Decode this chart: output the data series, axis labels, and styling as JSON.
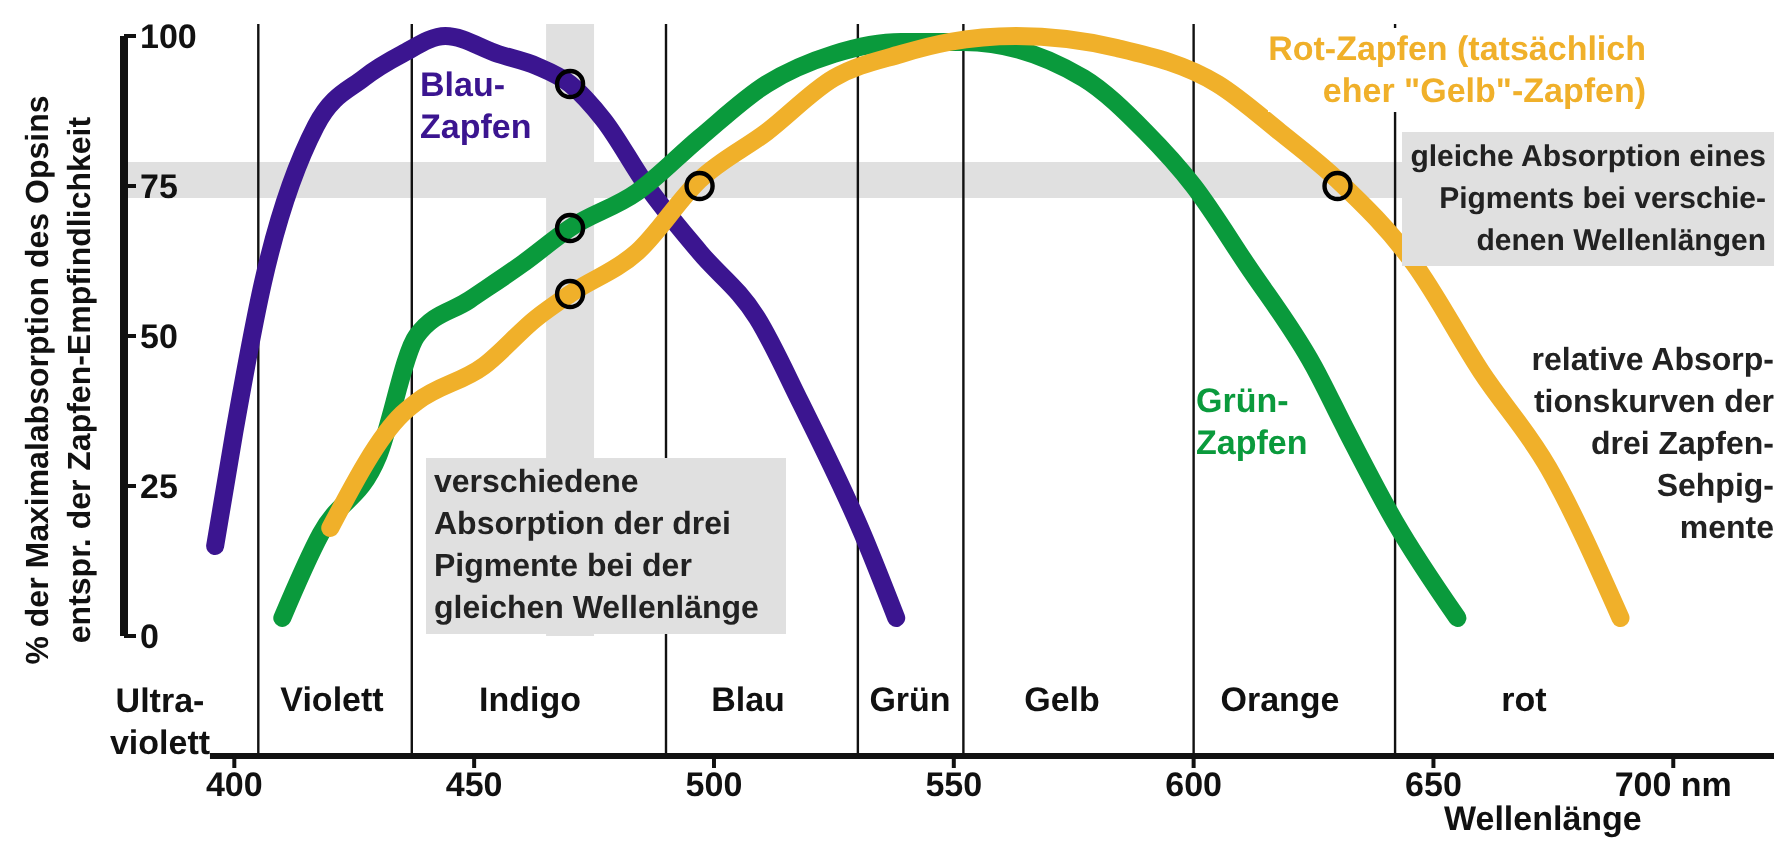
{
  "chart_data": {
    "type": "line",
    "ylabel": "% der Maximalabsorption des Opsins\nentspr. der Zapfen-Empfindlichkeit",
    "xlabel": "Wellenlänge",
    "xlim": [
      377,
      721
    ],
    "xticks": [
      400,
      450,
      500,
      550,
      600,
      650,
      {
        "value": 700,
        "label": "700 nm"
      }
    ],
    "ylim": [
      -20,
      102
    ],
    "yticks": [
      0,
      25,
      50,
      75,
      100
    ],
    "line_style": "solid",
    "marker": "none",
    "series": [
      {
        "name": "Blau-\nZapfen",
        "color": "#3b1590",
        "x": [
          396,
          400,
          406,
          417,
          427,
          435,
          444,
          455,
          463,
          470,
          477,
          486,
          497,
          509,
          518,
          531,
          538
        ],
        "values": [
          15,
          34,
          59,
          85,
          93,
          97,
          100,
          97,
          95,
          92,
          86,
          75,
          64,
          53,
          39,
          17,
          3
        ]
      },
      {
        "name": "Grün-\nZapfen",
        "color": "#0a9a3c",
        "x": [
          410,
          418,
          430,
          438,
          449,
          460,
          470,
          484,
          497,
          511,
          525,
          539,
          552,
          577,
          590,
          600,
          611,
          625,
          632,
          642,
          655
        ],
        "values": [
          3,
          17,
          30,
          50,
          56,
          62,
          68,
          74,
          83,
          92,
          97,
          99,
          99,
          93,
          84,
          75,
          62,
          45,
          34,
          19,
          3
        ]
      },
      {
        "name": "Rot-Zapfen (tatsächlich\neher \"Gelb\"-Zapfen)",
        "color": "#f0b02a",
        "x": [
          420,
          435,
          438,
          452,
          463,
          470,
          484,
          497,
          511,
          525,
          539,
          549,
          563,
          584,
          605,
          618,
          630,
          646,
          660,
          674,
          689
        ],
        "values": [
          18,
          37,
          39,
          45,
          53,
          57,
          64,
          76,
          84,
          93,
          97,
          99,
          100,
          98,
          92,
          84,
          76,
          62,
          44,
          28,
          3
        ]
      },
      {
        "type": "scatter",
        "marker": "circle",
        "color": "#000000",
        "x": [
          470,
          470,
          470,
          497,
          630
        ],
        "values": [
          92,
          68,
          57,
          75,
          75
        ]
      }
    ],
    "ref_lines": [
      {
        "axis": "x",
        "value": 405
      },
      {
        "axis": "x",
        "value": 437
      },
      {
        "axis": "x",
        "value": 490
      },
      {
        "axis": "x",
        "value": 530
      },
      {
        "axis": "x",
        "value": 552
      },
      {
        "axis": "x",
        "value": 600
      },
      {
        "axis": "x",
        "value": 642
      }
    ],
    "bands": [
      {
        "axis": "y",
        "from": 73,
        "to": 79,
        "color": "#e0e0e0"
      },
      {
        "axis": "x",
        "from": 465,
        "to": 475,
        "color": "#e0e0e0"
      }
    ],
    "annotations": [
      "gleiche Absorption eines\nPigments bei verschie-\ndenen Wellenlängen",
      "verschiedene\nAbsorption der drei\nPigmente bei der\ngleichen Wellenlänge",
      "relative Absorp-\ntionskurven der\ndrei Zapfen-\nSehpig-\nmente",
      "Ultra-\nviolett",
      "Violett",
      "Indigo",
      "Blau",
      "Grün",
      "Gelb",
      "Orange",
      "rot"
    ]
  }
}
